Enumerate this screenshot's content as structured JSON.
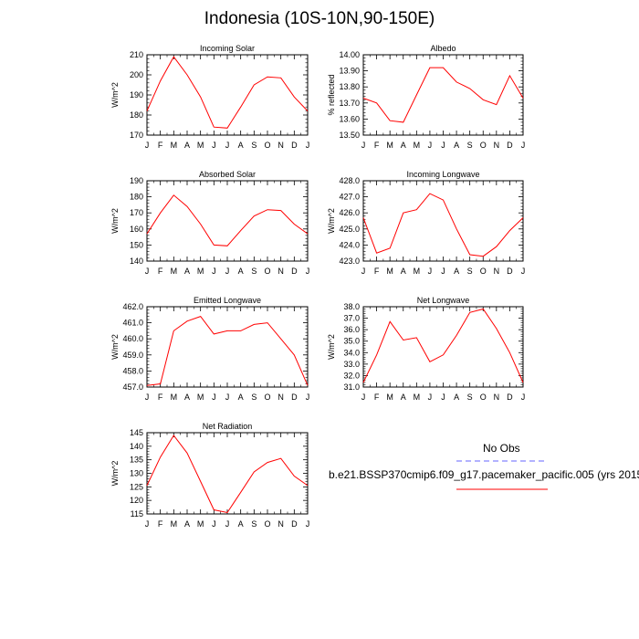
{
  "title": "Indonesia (10S-10N,90-150E)",
  "month_labels": [
    "J",
    "F",
    "M",
    "A",
    "M",
    "J",
    "J",
    "A",
    "S",
    "O",
    "N",
    "D",
    "J"
  ],
  "legend": {
    "obs_label": "No Obs",
    "model_label": "b.e21.BSSP370cmip6.f09_g17.pacemaker_pacific.005 (yrs 2015",
    "obs_color": "#6666ff",
    "model_color": "#ff0000"
  },
  "chart_data": [
    {
      "type": "line",
      "title": "Incoming Solar",
      "ylabel": "W/m^2",
      "ylim": [
        170,
        210
      ],
      "yticks": [
        "170",
        "180",
        "190",
        "200",
        "210"
      ],
      "values": [
        182,
        197,
        209,
        200,
        189,
        174,
        173.5,
        184,
        195,
        199,
        198.5,
        189,
        182
      ]
    },
    {
      "type": "line",
      "title": "Albedo",
      "ylabel": "% reflected",
      "ylim": [
        13.5,
        14.0
      ],
      "yticks": [
        "13.50",
        "13.60",
        "13.70",
        "13.80",
        "13.90",
        "14.00"
      ],
      "values": [
        13.73,
        13.7,
        13.59,
        13.58,
        13.75,
        13.92,
        13.92,
        13.83,
        13.79,
        13.72,
        13.69,
        13.87,
        13.73
      ]
    },
    {
      "type": "line",
      "title": "Absorbed Solar",
      "ylabel": "W/m^2",
      "ylim": [
        140,
        190
      ],
      "yticks": [
        "140",
        "150",
        "160",
        "170",
        "180",
        "190"
      ],
      "values": [
        157,
        170,
        181,
        174,
        163,
        150,
        149.5,
        159,
        168,
        172,
        171.5,
        163,
        157
      ]
    },
    {
      "type": "line",
      "title": "Incoming Longwave",
      "ylabel": "W/m^2",
      "ylim": [
        423,
        428
      ],
      "yticks": [
        "423.0",
        "424.0",
        "425.0",
        "426.0",
        "427.0",
        "428.0"
      ],
      "values": [
        425.7,
        423.5,
        423.8,
        426.0,
        426.2,
        427.2,
        426.8,
        425.0,
        423.4,
        423.3,
        423.9,
        424.9,
        425.7
      ]
    },
    {
      "type": "line",
      "title": "Emitted Longwave",
      "ylabel": "W/m^2",
      "ylim": [
        457,
        462
      ],
      "yticks": [
        "457.0",
        "458.0",
        "459.0",
        "460.0",
        "461.0",
        "462.0"
      ],
      "values": [
        457.1,
        457.2,
        460.5,
        461.1,
        461.4,
        460.3,
        460.5,
        460.5,
        460.9,
        461.0,
        460.0,
        459.0,
        457.1
      ]
    },
    {
      "type": "line",
      "title": "Net Longwave",
      "ylabel": "W/m^2",
      "ylim": [
        31,
        38
      ],
      "yticks": [
        "31.0",
        "32.0",
        "33.0",
        "34.0",
        "35.0",
        "36.0",
        "37.0",
        "38.0"
      ],
      "values": [
        31.4,
        33.8,
        36.7,
        35.1,
        35.3,
        33.2,
        33.8,
        35.5,
        37.5,
        37.8,
        36.1,
        34.0,
        31.4
      ]
    },
    {
      "type": "line",
      "title": "Net Radiation",
      "ylabel": "W/m^2",
      "ylim": [
        115,
        145
      ],
      "yticks": [
        "115",
        "120",
        "125",
        "130",
        "135",
        "140",
        "145"
      ],
      "values": [
        125.5,
        136,
        144,
        137.5,
        127,
        116.5,
        115.5,
        123,
        130.5,
        134,
        135.5,
        129,
        125.5
      ]
    }
  ]
}
